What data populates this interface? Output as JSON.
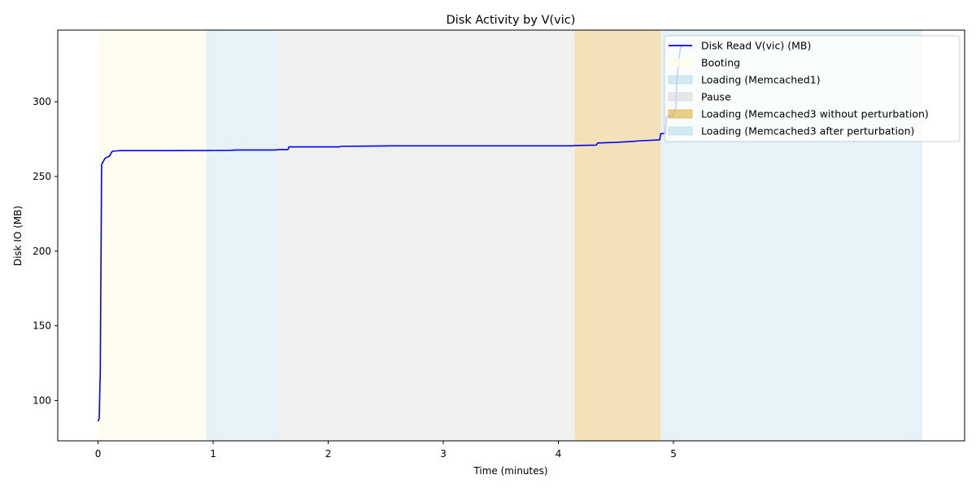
{
  "chart_data": {
    "type": "line",
    "title": "Disk Activity by V(vic)",
    "xlabel": "Time (minutes)",
    "ylabel": "Disk IO (MB)",
    "xlim": [
      -0.35,
      7.53
    ],
    "ylim": [
      73,
      348
    ],
    "xticks": [
      0,
      1,
      2,
      3,
      4,
      5
    ],
    "yticks": [
      100,
      150,
      200,
      250,
      300
    ],
    "grid": false,
    "legend_position": "top-right",
    "series": [
      {
        "name": "Disk Read V(vic) (MB)",
        "color": "#0000ff",
        "points": [
          [
            0.0,
            86
          ],
          [
            0.01,
            88
          ],
          [
            0.015,
            105
          ],
          [
            0.02,
            120
          ],
          [
            0.022,
            150
          ],
          [
            0.025,
            185
          ],
          [
            0.028,
            220
          ],
          [
            0.03,
            250
          ],
          [
            0.032,
            258
          ],
          [
            0.045,
            260
          ],
          [
            0.06,
            262
          ],
          [
            0.08,
            263
          ],
          [
            0.1,
            263.5
          ],
          [
            0.11,
            265
          ],
          [
            0.12,
            266.5
          ],
          [
            0.13,
            267
          ],
          [
            0.2,
            267.3
          ],
          [
            0.5,
            267.3
          ],
          [
            1.0,
            267.4
          ],
          [
            1.15,
            267.5
          ],
          [
            1.2,
            267.7
          ],
          [
            1.55,
            267.7
          ],
          [
            1.56,
            268
          ],
          [
            1.65,
            268
          ],
          [
            1.66,
            269.8
          ],
          [
            2.1,
            269.8
          ],
          [
            2.11,
            270.2
          ],
          [
            2.3,
            270.3
          ],
          [
            2.56,
            270.5
          ],
          [
            4.13,
            270.5
          ],
          [
            4.14,
            270.7
          ],
          [
            4.33,
            271
          ],
          [
            4.34,
            272.4
          ],
          [
            4.5,
            272.8
          ],
          [
            4.65,
            273.5
          ],
          [
            4.7,
            273.8
          ],
          [
            4.88,
            274.5
          ],
          [
            4.89,
            278.7
          ],
          [
            4.93,
            278.8
          ],
          [
            4.94,
            290
          ],
          [
            5.0,
            291
          ],
          [
            5.02,
            296
          ],
          [
            5.03,
            315
          ],
          [
            5.05,
            330
          ],
          [
            5.06,
            336
          ],
          [
            5.08,
            337.5
          ],
          [
            5.1,
            337.5
          ]
        ]
      }
    ],
    "regions": [
      {
        "name": "Booting",
        "start": 0.0,
        "end": 0.94,
        "color": "#fffce6",
        "opacity": 0.6
      },
      {
        "name": "Loading (Memcached1)",
        "start": 0.94,
        "end": 1.55,
        "color": "#add8e6",
        "opacity": 0.32
      },
      {
        "name": "Pause",
        "start": 1.55,
        "end": 4.14,
        "color": "#d3d3d3",
        "opacity": 0.35
      },
      {
        "name": "Loading (Memcached3 without perturbation)",
        "start": 4.14,
        "end": 4.89,
        "color": "#daa520",
        "opacity": 0.32
      },
      {
        "name": "Loading (Memcached3 after perturbation)",
        "start": 4.89,
        "end": 7.16,
        "color": "#add8e6",
        "opacity": 0.32
      }
    ]
  }
}
